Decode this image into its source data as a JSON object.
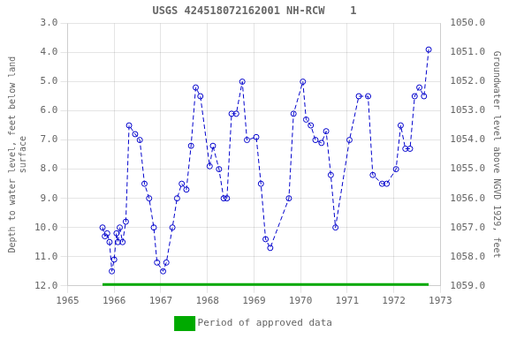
{
  "chart_data": {
    "type": "line",
    "title": "USGS 424518072162001 NH-RCW    1",
    "ylabel": "Depth to water level, feet below land\nsurface",
    "y2label": "Groundwater level above NGVD 1929, feet",
    "x": [
      1965.75,
      1965.8,
      1965.85,
      1965.9,
      1965.95,
      1966.0,
      1966.05,
      1966.08,
      1966.12,
      1966.18,
      1966.25,
      1966.32,
      1966.45,
      1966.55,
      1966.65,
      1966.75,
      1966.85,
      1966.92,
      1967.05,
      1967.12,
      1967.25,
      1967.35,
      1967.45,
      1967.55,
      1967.65,
      1967.75,
      1967.85,
      1968.05,
      1968.12,
      1968.25,
      1968.35,
      1968.42,
      1968.52,
      1968.62,
      1968.75,
      1968.85,
      1969.05,
      1969.15,
      1969.25,
      1969.35,
      1969.75,
      1969.85,
      1970.05,
      1970.12,
      1970.22,
      1970.32,
      1970.45,
      1970.55,
      1970.65,
      1970.75,
      1971.05,
      1971.25,
      1971.45,
      1971.55,
      1971.75,
      1971.85,
      1972.05,
      1972.15,
      1972.25,
      1972.35,
      1972.45,
      1972.55,
      1972.65,
      1972.75
    ],
    "series": [
      {
        "color": "#0000cc",
        "line_style": "dashed",
        "marker": "circle",
        "values": [
          10.0,
          10.3,
          10.2,
          10.5,
          11.5,
          11.1,
          10.2,
          10.5,
          10.0,
          10.5,
          9.8,
          6.5,
          6.8,
          7.0,
          8.5,
          9.0,
          10.0,
          11.2,
          11.5,
          11.2,
          10.0,
          9.0,
          8.5,
          8.7,
          7.2,
          5.2,
          5.5,
          7.9,
          7.2,
          8.0,
          9.0,
          9.0,
          6.1,
          6.1,
          5.0,
          7.0,
          6.9,
          8.5,
          10.4,
          10.7,
          9.0,
          6.1,
          5.0,
          6.3,
          6.5,
          7.0,
          7.1,
          6.7,
          8.2,
          10.0,
          7.0,
          5.5,
          5.5,
          8.2,
          8.5,
          8.5,
          8.0,
          6.5,
          7.3,
          7.3,
          5.5,
          5.2,
          5.5,
          3.9
        ]
      },
      {
        "name": "Period of approved data",
        "color": "#00aa00",
        "line_style": "solid",
        "marker": "none",
        "x": [
          1965.75,
          1972.75
        ],
        "values": [
          12.0,
          12.0
        ]
      }
    ],
    "xlim": [
      1965,
      1973
    ],
    "xticks": [
      1965,
      1966,
      1967,
      1968,
      1969,
      1970,
      1971,
      1972,
      1973
    ],
    "ylim": [
      12.0,
      3.0
    ],
    "yticks": [
      {
        "value": 3.0,
        "label": "3.0"
      },
      {
        "value": 4.0,
        "label": "4.0"
      },
      {
        "value": 5.0,
        "label": "5.0"
      },
      {
        "value": 6.0,
        "label": "6.0"
      },
      {
        "value": 7.0,
        "label": "7.0"
      },
      {
        "value": 8.0,
        "label": "8.0"
      },
      {
        "value": 9.0,
        "label": "9.0"
      },
      {
        "value": 10.0,
        "label": "10.0"
      },
      {
        "value": 11.0,
        "label": "11.0"
      },
      {
        "value": 12.0,
        "label": "12.0"
      }
    ],
    "y2lim": [
      1059.0,
      1050.0
    ],
    "y2ticks": [
      {
        "value": 1059.0,
        "label": "1059.0"
      },
      {
        "value": 1058.0,
        "label": "1058.0"
      },
      {
        "value": 1057.0,
        "label": "1057.0"
      },
      {
        "value": 1056.0,
        "label": "1056.0"
      },
      {
        "value": 1055.0,
        "label": "1055.0"
      },
      {
        "value": 1054.0,
        "label": "1054.0"
      },
      {
        "value": 1053.0,
        "label": "1053.0"
      },
      {
        "value": 1052.0,
        "label": "1052.0"
      },
      {
        "value": 1051.0,
        "label": "1051.0"
      },
      {
        "value": 1050.0,
        "label": "1050.0"
      }
    ],
    "grid": true,
    "legend": "bottom"
  }
}
